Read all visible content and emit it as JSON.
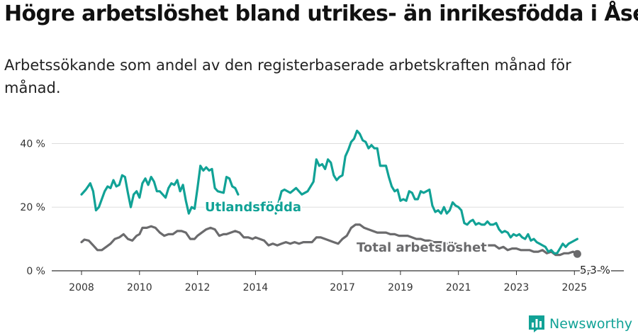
{
  "title": "Högre arbetslöshet bland utrikes- än inrikesfödda i Åsele",
  "subtitle": "Arbetssökande som andel av den registerbaserade arbetskraften månad för månad.",
  "brand": {
    "name": "Newsworthy",
    "icon": "bar-chart-logo-icon",
    "color": "#11a296"
  },
  "chart_data": {
    "type": "line",
    "x_unit": "year",
    "xlim": [
      2007.5,
      2025.7
    ],
    "ylim": [
      0,
      45
    ],
    "grid": true,
    "x_ticks": [
      2008,
      2010,
      2012,
      2014,
      2017,
      2019,
      2021,
      2023,
      2025
    ],
    "x_tick_labels": [
      "2008",
      "2010",
      "2012",
      "2014",
      "2017",
      "2019",
      "2021",
      "2023",
      "2025"
    ],
    "y_ticks": [
      0,
      20,
      40
    ],
    "y_tick_labels": [
      "0 %",
      "20 %",
      "40 %"
    ],
    "series": [
      {
        "name": "Utlandsfödda",
        "color": "#11a296",
        "points": [
          [
            2008.0,
            24
          ],
          [
            2008.15,
            25.5
          ],
          [
            2008.3,
            27.5
          ],
          [
            2008.4,
            25
          ],
          [
            2008.5,
            19
          ],
          [
            2008.6,
            20
          ],
          [
            2008.8,
            25
          ],
          [
            2008.9,
            26.5
          ],
          [
            2009.0,
            26
          ],
          [
            2009.1,
            28.5
          ],
          [
            2009.2,
            26.5
          ],
          [
            2009.3,
            27
          ],
          [
            2009.4,
            30
          ],
          [
            2009.5,
            29.5
          ],
          [
            2009.6,
            24.5
          ],
          [
            2009.7,
            20
          ],
          [
            2009.8,
            24
          ],
          [
            2009.9,
            25
          ],
          [
            2010.0,
            23
          ],
          [
            2010.1,
            27.5
          ],
          [
            2010.2,
            29
          ],
          [
            2010.3,
            27
          ],
          [
            2010.4,
            29.5
          ],
          [
            2010.5,
            28
          ],
          [
            2010.6,
            25
          ],
          [
            2010.7,
            25
          ],
          [
            2010.8,
            24
          ],
          [
            2010.9,
            23
          ],
          [
            2011.0,
            26
          ],
          [
            2011.1,
            27.5
          ],
          [
            2011.2,
            27
          ],
          [
            2011.3,
            28.5
          ],
          [
            2011.4,
            25
          ],
          [
            2011.5,
            27
          ],
          [
            2011.6,
            22
          ],
          [
            2011.7,
            18
          ],
          [
            2011.8,
            20
          ],
          [
            2011.9,
            19.5
          ],
          [
            2012.0,
            26
          ],
          [
            2012.1,
            33
          ],
          [
            2012.2,
            31.5
          ],
          [
            2012.3,
            32.5
          ],
          [
            2012.4,
            31.5
          ],
          [
            2012.5,
            32
          ],
          [
            2012.6,
            26
          ],
          [
            2012.7,
            25
          ],
          [
            2012.9,
            24.5
          ],
          [
            2013.0,
            29.5
          ],
          [
            2013.1,
            29
          ],
          [
            2013.2,
            26.5
          ],
          [
            2013.3,
            26
          ],
          [
            2013.4,
            24
          ],
          [
            2014.7,
            18
          ],
          [
            2014.9,
            25
          ],
          [
            2015.0,
            25.5
          ],
          [
            2015.2,
            24.5
          ],
          [
            2015.4,
            26
          ],
          [
            2015.6,
            24
          ],
          [
            2015.8,
            25
          ],
          [
            2016.0,
            28
          ],
          [
            2016.1,
            35
          ],
          [
            2016.2,
            33
          ],
          [
            2016.3,
            33.5
          ],
          [
            2016.4,
            32
          ],
          [
            2016.5,
            35
          ],
          [
            2016.6,
            34
          ],
          [
            2016.7,
            30
          ],
          [
            2016.8,
            28.5
          ],
          [
            2016.9,
            29.5
          ],
          [
            2017.0,
            30
          ],
          [
            2017.1,
            36
          ],
          [
            2017.2,
            38
          ],
          [
            2017.3,
            40.5
          ],
          [
            2017.4,
            41.5
          ],
          [
            2017.5,
            44
          ],
          [
            2017.6,
            43
          ],
          [
            2017.7,
            41
          ],
          [
            2017.8,
            40.5
          ],
          [
            2017.9,
            38.5
          ],
          [
            2018.0,
            39.5
          ],
          [
            2018.1,
            38.5
          ],
          [
            2018.2,
            38.5
          ],
          [
            2018.3,
            33
          ],
          [
            2018.5,
            33
          ],
          [
            2018.6,
            29.5
          ],
          [
            2018.7,
            26.5
          ],
          [
            2018.8,
            25
          ],
          [
            2018.9,
            25.5
          ],
          [
            2019.0,
            22
          ],
          [
            2019.1,
            22.5
          ],
          [
            2019.2,
            22
          ],
          [
            2019.3,
            25
          ],
          [
            2019.4,
            24.5
          ],
          [
            2019.5,
            22.5
          ],
          [
            2019.6,
            22.5
          ],
          [
            2019.7,
            25
          ],
          [
            2019.8,
            24.5
          ],
          [
            2019.9,
            25
          ],
          [
            2020.0,
            25.5
          ],
          [
            2020.1,
            20.5
          ],
          [
            2020.2,
            18.5
          ],
          [
            2020.3,
            19
          ],
          [
            2020.4,
            18
          ],
          [
            2020.5,
            20
          ],
          [
            2020.6,
            18
          ],
          [
            2020.7,
            19
          ],
          [
            2020.8,
            21.5
          ],
          [
            2020.9,
            20.5
          ],
          [
            2021.0,
            20
          ],
          [
            2021.1,
            19
          ],
          [
            2021.2,
            15
          ],
          [
            2021.3,
            14.5
          ],
          [
            2021.4,
            15.5
          ],
          [
            2021.5,
            16
          ],
          [
            2021.6,
            14.5
          ],
          [
            2021.7,
            15
          ],
          [
            2021.8,
            14.5
          ],
          [
            2021.9,
            14.5
          ],
          [
            2022.0,
            15.5
          ],
          [
            2022.1,
            14.5
          ],
          [
            2022.2,
            14.5
          ],
          [
            2022.3,
            15
          ],
          [
            2022.4,
            13
          ],
          [
            2022.5,
            12
          ],
          [
            2022.6,
            12.5
          ],
          [
            2022.7,
            12
          ],
          [
            2022.8,
            10.5
          ],
          [
            2022.9,
            11.5
          ],
          [
            2023.0,
            11
          ],
          [
            2023.1,
            11.5
          ],
          [
            2023.2,
            10.5
          ],
          [
            2023.3,
            10
          ],
          [
            2023.4,
            11.5
          ],
          [
            2023.5,
            9.5
          ],
          [
            2023.6,
            10
          ],
          [
            2023.7,
            9
          ],
          [
            2023.8,
            8.5
          ],
          [
            2023.9,
            8
          ],
          [
            2024.0,
            7.5
          ],
          [
            2024.1,
            6
          ],
          [
            2024.2,
            6.5
          ],
          [
            2024.3,
            5.5
          ],
          [
            2024.4,
            5.5
          ],
          [
            2024.5,
            7
          ],
          [
            2024.6,
            8.5
          ],
          [
            2024.7,
            7.5
          ],
          [
            2024.8,
            8.5
          ],
          [
            2024.9,
            9
          ],
          [
            2025.0,
            9.5
          ],
          [
            2025.1,
            10
          ]
        ]
      },
      {
        "name": "Total arbetslöshet",
        "color": "#6b6b6d",
        "last_value_label": "5,3 %",
        "points": [
          [
            2008.0,
            9
          ],
          [
            2008.1,
            9.8
          ],
          [
            2008.25,
            9.5
          ],
          [
            2008.4,
            8
          ],
          [
            2008.55,
            6.5
          ],
          [
            2008.7,
            6.5
          ],
          [
            2008.85,
            7.5
          ],
          [
            2009.0,
            8.5
          ],
          [
            2009.15,
            10
          ],
          [
            2009.3,
            10.5
          ],
          [
            2009.45,
            11.5
          ],
          [
            2009.6,
            10
          ],
          [
            2009.75,
            9.5
          ],
          [
            2009.9,
            11
          ],
          [
            2010.0,
            11.5
          ],
          [
            2010.1,
            13.5
          ],
          [
            2010.25,
            13.5
          ],
          [
            2010.4,
            14
          ],
          [
            2010.55,
            13.5
          ],
          [
            2010.7,
            12
          ],
          [
            2010.85,
            11
          ],
          [
            2011.0,
            11.5
          ],
          [
            2011.15,
            11.5
          ],
          [
            2011.3,
            12.5
          ],
          [
            2011.45,
            12.5
          ],
          [
            2011.6,
            12
          ],
          [
            2011.75,
            10
          ],
          [
            2011.9,
            10
          ],
          [
            2012.0,
            11
          ],
          [
            2012.15,
            12
          ],
          [
            2012.3,
            13
          ],
          [
            2012.45,
            13.5
          ],
          [
            2012.6,
            13
          ],
          [
            2012.75,
            11
          ],
          [
            2012.9,
            11.5
          ],
          [
            2013.0,
            11.5
          ],
          [
            2013.15,
            12
          ],
          [
            2013.3,
            12.5
          ],
          [
            2013.45,
            12
          ],
          [
            2013.6,
            10.5
          ],
          [
            2013.75,
            10.5
          ],
          [
            2013.9,
            10
          ],
          [
            2014.0,
            10.5
          ],
          [
            2014.15,
            10
          ],
          [
            2014.3,
            9.5
          ],
          [
            2014.45,
            8
          ],
          [
            2014.6,
            8.5
          ],
          [
            2014.75,
            8
          ],
          [
            2014.9,
            8.5
          ],
          [
            2015.05,
            9
          ],
          [
            2015.2,
            8.5
          ],
          [
            2015.35,
            9
          ],
          [
            2015.5,
            8.5
          ],
          [
            2015.65,
            9
          ],
          [
            2015.8,
            9
          ],
          [
            2015.95,
            9
          ],
          [
            2016.1,
            10.5
          ],
          [
            2016.25,
            10.5
          ],
          [
            2016.4,
            10
          ],
          [
            2016.55,
            9.5
          ],
          [
            2016.7,
            9
          ],
          [
            2016.85,
            8.5
          ],
          [
            2017.0,
            10
          ],
          [
            2017.15,
            11
          ],
          [
            2017.3,
            13.5
          ],
          [
            2017.45,
            14.5
          ],
          [
            2017.6,
            14.5
          ],
          [
            2017.75,
            13.5
          ],
          [
            2017.9,
            13
          ],
          [
            2018.05,
            12.5
          ],
          [
            2018.2,
            12
          ],
          [
            2018.35,
            12
          ],
          [
            2018.5,
            12
          ],
          [
            2018.65,
            11.5
          ],
          [
            2018.8,
            11.5
          ],
          [
            2018.95,
            11
          ],
          [
            2019.1,
            11
          ],
          [
            2019.25,
            11
          ],
          [
            2019.4,
            10.5
          ],
          [
            2019.55,
            10
          ],
          [
            2019.7,
            10
          ],
          [
            2019.85,
            9.5
          ],
          [
            2020.0,
            9.5
          ],
          [
            2020.15,
            9
          ],
          [
            2020.3,
            9
          ],
          [
            2020.45,
            9
          ],
          [
            2020.6,
            8.5
          ],
          [
            2020.75,
            8.5
          ],
          [
            2020.9,
            8.5
          ],
          [
            2021.05,
            8
          ],
          [
            2021.2,
            8
          ],
          [
            2021.35,
            8
          ],
          [
            2021.5,
            7.5
          ],
          [
            2021.65,
            7.5
          ],
          [
            2021.8,
            7.5
          ],
          [
            2021.95,
            8
          ],
          [
            2022.1,
            8
          ],
          [
            2022.25,
            8
          ],
          [
            2022.4,
            7
          ],
          [
            2022.55,
            7.5
          ],
          [
            2022.7,
            6.5
          ],
          [
            2022.85,
            7
          ],
          [
            2023.0,
            7
          ],
          [
            2023.15,
            6.5
          ],
          [
            2023.3,
            6.5
          ],
          [
            2023.45,
            6.5
          ],
          [
            2023.6,
            6
          ],
          [
            2023.75,
            6
          ],
          [
            2023.9,
            6.5
          ],
          [
            2024.05,
            5.5
          ],
          [
            2024.2,
            6
          ],
          [
            2024.35,
            5
          ],
          [
            2024.5,
            5
          ],
          [
            2024.65,
            5.5
          ],
          [
            2024.8,
            5.5
          ],
          [
            2024.95,
            6
          ],
          [
            2025.1,
            5.3
          ]
        ]
      }
    ]
  }
}
